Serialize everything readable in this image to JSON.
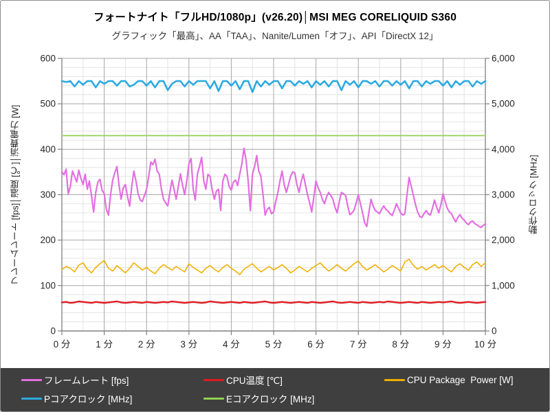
{
  "title": "フォートナイト「フルHD/1080p」(v26.20)│MSI MEG CORELIQUID S360",
  "subtitle": "グラフィック「最高」、AA「TAA」、Nanite/Lumen「オフ」、API「DirectX 12」",
  "chart_data": {
    "type": "line",
    "title": "フォートナイト「フルHD/1080p」(v26.20)│MSI MEG CORELIQUID S360",
    "subtitle": "グラフィック「最高」、AA「TAA」、Nanite/Lumen「オフ」、API「DirectX 12」",
    "x_axis": {
      "range": [
        0,
        10
      ],
      "major_step": 1,
      "minor_step": 0.5,
      "ticks": [
        "0 分",
        "1 分",
        "2 分",
        "3 分",
        "4 分",
        "5 分",
        "6 分",
        "7 分",
        "8 分",
        "9 分",
        "10 分"
      ]
    },
    "y_left": {
      "title": "フレームレート [fps]│温度 [℃]│消費電力 [W]",
      "range": [
        0,
        600
      ],
      "major_step": 100,
      "minor_step": 20,
      "tick_labels": [
        "0",
        "100",
        "200",
        "300",
        "400",
        "500",
        "600"
      ]
    },
    "y_right": {
      "title": "動作クロック [MHz]",
      "range": [
        0,
        6000
      ],
      "major_step": 1000,
      "tick_labels": [
        "0",
        "1,000",
        "2,000",
        "3,000",
        "4,000",
        "5,000",
        "6,000"
      ]
    },
    "colors": {
      "axis": "#808080",
      "grid_major": "#a6a6a6",
      "grid_minor": "#e3e3e3",
      "tick_text": "#262626",
      "legend_bg": "#3f3f3f",
      "legend_text": "#ffffff"
    },
    "legend": {
      "position": "bottom",
      "bg": "#3f3f3f",
      "rows": [
        [
          0,
          1,
          2
        ],
        [
          3,
          4
        ]
      ]
    },
    "series": [
      {
        "name": "フレームレート [fps]",
        "color": "#e36fe0",
        "axis": "left",
        "width": 2.2,
        "x_start": 0,
        "x_step": 0.05,
        "values": [
          350,
          344,
          356,
          302,
          318,
          352,
          340,
          328,
          354,
          336,
          322,
          345,
          312,
          330,
          298,
          262,
          305,
          328,
          334,
          310,
          302,
          268,
          255,
          300,
          332,
          348,
          362,
          320,
          290,
          315,
          322,
          295,
          275,
          318,
          352,
          330,
          302,
          288,
          285,
          298,
          312,
          340,
          372,
          366,
          378,
          352,
          345,
          312,
          290,
          282,
          275,
          305,
          332,
          312,
          290,
          318,
          346,
          320,
          300,
          330,
          368,
          380,
          312,
          288,
          345,
          362,
          382,
          330,
          312,
          345,
          340,
          310,
          290,
          308,
          312,
          265,
          330,
          345,
          340,
          318,
          310,
          328,
          332,
          320,
          345,
          368,
          402,
          375,
          330,
          265,
          345,
          362,
          386,
          352,
          340,
          300,
          255,
          268,
          272,
          258,
          262,
          285,
          305,
          330,
          352,
          322,
          305,
          322,
          340,
          350,
          348,
          322,
          305,
          328,
          345,
          322,
          300,
          282,
          262,
          295,
          330,
          315,
          305,
          290,
          280,
          295,
          305,
          298,
          290,
          272,
          260,
          285,
          305,
          302,
          298,
          275,
          256,
          260,
          266,
          282,
          300,
          280,
          260,
          238,
          230,
          262,
          290,
          275,
          265,
          262,
          258,
          268,
          275,
          268,
          264,
          258,
          254,
          266,
          280,
          270,
          260,
          255,
          258,
          300,
          338,
          318,
          298,
          278,
          262,
          252,
          250,
          258,
          265,
          258,
          255,
          270,
          288,
          272,
          260,
          278,
          302,
          285,
          270,
          262,
          258,
          248,
          240,
          250,
          256,
          248,
          244,
          238,
          234,
          240,
          242,
          236,
          234,
          230,
          228,
          232,
          236
        ]
      },
      {
        "name": "CPU温度 [℃]",
        "color": "#e11b22",
        "axis": "left",
        "width": 2.4,
        "x_start": 0,
        "x_step": 0.1,
        "values": [
          63,
          64,
          62,
          63,
          65,
          64,
          63,
          62,
          64,
          63,
          62,
          63,
          64,
          65,
          63,
          62,
          63,
          64,
          63,
          62,
          64,
          63,
          62,
          63,
          64,
          63,
          65,
          64,
          63,
          62,
          63,
          64,
          63,
          62,
          63,
          65,
          64,
          63,
          62,
          63,
          64,
          63,
          62,
          64,
          63,
          62,
          63,
          64,
          65,
          63,
          62,
          63,
          64,
          63,
          62,
          63,
          64,
          63,
          62,
          64,
          63,
          62,
          63,
          64,
          65,
          63,
          62,
          63,
          64,
          63,
          62,
          64,
          63,
          62,
          63,
          64,
          63,
          65,
          64,
          63,
          62,
          63,
          64,
          63,
          62,
          64,
          63,
          62,
          63,
          64,
          63,
          64,
          65,
          63,
          62,
          63,
          64,
          63,
          62,
          63,
          64
        ]
      },
      {
        "name": "CPU Package  Power [W]",
        "color": "#f0b000",
        "axis": "left",
        "width": 1.6,
        "x_start": 0,
        "x_step": 0.1,
        "values": [
          135,
          142,
          138,
          130,
          145,
          150,
          136,
          128,
          140,
          148,
          155,
          138,
          132,
          144,
          136,
          128,
          138,
          150,
          142,
          134,
          140,
          132,
          126,
          138,
          146,
          140,
          134,
          142,
          136,
          130,
          148,
          140,
          134,
          128,
          138,
          144,
          136,
          130,
          140,
          146,
          138,
          132,
          124,
          136,
          142,
          148,
          138,
          130,
          136,
          142,
          134,
          140,
          146,
          138,
          128,
          134,
          142,
          136,
          130,
          138,
          144,
          150,
          140,
          132,
          138,
          146,
          138,
          132,
          140,
          148,
          154,
          142,
          134,
          140,
          146,
          138,
          130,
          136,
          144,
          138,
          132,
          152,
          158,
          144,
          136,
          142,
          134,
          140,
          146,
          138,
          144,
          136,
          130,
          142,
          148,
          140,
          134,
          146,
          152,
          142,
          150
        ]
      },
      {
        "name": "Pコアクロック [MHz]",
        "color": "#2baae2",
        "axis": "right",
        "width": 2.6,
        "x_start": 0,
        "x_step": 0.1,
        "values": [
          5500,
          5480,
          5500,
          5380,
          5500,
          5420,
          5500,
          5500,
          5360,
          5500,
          5440,
          5500,
          5500,
          5400,
          5500,
          5500,
          5380,
          5420,
          5500,
          5500,
          5400,
          5500,
          5360,
          5500,
          5500,
          5300,
          5440,
          5500,
          5500,
          5380,
          5500,
          5420,
          5500,
          5500,
          5500,
          5340,
          5500,
          5280,
          5500,
          5500,
          5400,
          5500,
          5320,
          5500,
          5500,
          5260,
          5500,
          5380,
          5500,
          5420,
          5500,
          5500,
          5340,
          5500,
          5500,
          5400,
          5500,
          5440,
          5500,
          5360,
          5500,
          5420,
          5500,
          5380,
          5500,
          5500,
          5300,
          5500,
          5420,
          5500,
          5360,
          5500,
          5500,
          5440,
          5500,
          5380,
          5500,
          5500,
          5400,
          5500,
          5420,
          5500,
          5340,
          5500,
          5500,
          5380,
          5500,
          5440,
          5500,
          5500,
          5400,
          5500,
          5360,
          5500,
          5420,
          5500,
          5500,
          5380,
          5500,
          5440,
          5500
        ]
      },
      {
        "name": "Eコアクロック [MHz]",
        "color": "#92d050",
        "axis": "right",
        "width": 1.8,
        "x_start": 0,
        "x_step": 1,
        "values": [
          4300,
          4300,
          4300,
          4300,
          4300,
          4300,
          4300,
          4300,
          4300,
          4300,
          4300
        ]
      }
    ]
  }
}
